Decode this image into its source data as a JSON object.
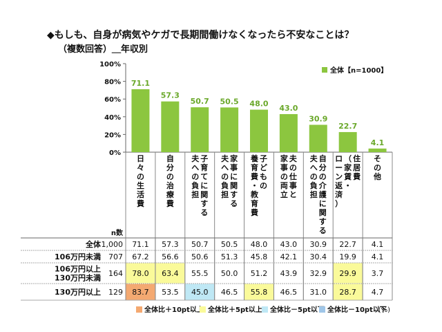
{
  "title": "◆もしも、自身が病気やケガで長期間働けなくなったら不安なことは？",
  "subtitle": "（複数回答）＿年収別",
  "colors": {
    "bar": "#8cc63f",
    "value_label": "#6aa82a",
    "high10": "#f4a971",
    "high5": "#fafa9a",
    "low5": "#bfe8f5",
    "low10": "#9fc6e8"
  },
  "chart_data": {
    "type": "bar",
    "ylim": [
      0,
      100
    ],
    "y_ticks": [
      "0%",
      "20%",
      "40%",
      "60%",
      "80%",
      "100%"
    ],
    "legend": {
      "label": "全体【n=1000】",
      "position": "top-right"
    },
    "categories": [
      "日々の生活費",
      "自分の治療費",
      "子育てに関する夫への負担",
      "家事に関する夫への負担",
      "子どもの養育費・教育費",
      "夫の仕事と家事の両立",
      "自分の介護に関する夫への負担",
      "住居費（家賃・ローン返済）",
      "その他"
    ],
    "category_lines": [
      [
        "日々の生活費"
      ],
      [
        "自分の治療費"
      ],
      [
        "子育てに関する",
        "夫への負担"
      ],
      [
        "家事に関する",
        "夫への負担"
      ],
      [
        "子どもの",
        "養育費・教育費"
      ],
      [
        "夫の仕事と",
        "家事の両立"
      ],
      [
        "自分の介護に関する",
        "夫への負担"
      ],
      [
        "住居費",
        "（家賃・",
        "ローン返済）"
      ],
      [
        "その他"
      ]
    ],
    "values": [
      71.1,
      57.3,
      50.7,
      50.5,
      48.0,
      43.0,
      30.9,
      22.7,
      4.1
    ],
    "value_labels": [
      "71.1",
      "57.3",
      "50.7",
      "50.5",
      "48.0",
      "43.0",
      "30.9",
      "22.7",
      "4.1"
    ]
  },
  "table": {
    "n_header": "n数",
    "percent_label": "(%)",
    "rows": [
      {
        "label": [
          "全体"
        ],
        "n": "1,000",
        "values": [
          "71.1",
          "57.3",
          "50.7",
          "50.5",
          "48.0",
          "43.0",
          "30.9",
          "22.7",
          "4.1"
        ],
        "highlights": [
          "",
          "",
          "",
          "",
          "",
          "",
          "",
          "",
          ""
        ]
      },
      {
        "label": [
          "106万円未満"
        ],
        "n": "707",
        "values": [
          "67.2",
          "56.6",
          "50.6",
          "51.3",
          "45.8",
          "42.1",
          "30.4",
          "19.9",
          "4.1"
        ],
        "highlights": [
          "",
          "",
          "",
          "",
          "",
          "",
          "",
          "",
          ""
        ]
      },
      {
        "label": [
          "106万円以上",
          "130万円未満"
        ],
        "n": "164",
        "values": [
          "78.0",
          "63.4",
          "55.5",
          "50.0",
          "51.2",
          "43.9",
          "32.9",
          "29.9",
          "3.7"
        ],
        "highlights": [
          "high5",
          "high5",
          "",
          "",
          "",
          "",
          "",
          "high5",
          ""
        ]
      },
      {
        "label": [
          "130万円以上"
        ],
        "n": "129",
        "values": [
          "83.7",
          "53.5",
          "45.0",
          "46.5",
          "55.8",
          "46.5",
          "31.0",
          "28.7",
          "4.7"
        ],
        "highlights": [
          "high10",
          "",
          "low5",
          "",
          "high5",
          "",
          "",
          "high5",
          ""
        ]
      }
    ]
  },
  "bottom_legend": [
    {
      "label": "全体比＋10pt以上",
      "color_key": "high10"
    },
    {
      "label": "全体比＋5pt以上",
      "color_key": "high5"
    },
    {
      "label": "全体比－5pt以下",
      "color_key": "low5"
    },
    {
      "label": "全体比－10pt以下",
      "color_key": "low10"
    }
  ]
}
